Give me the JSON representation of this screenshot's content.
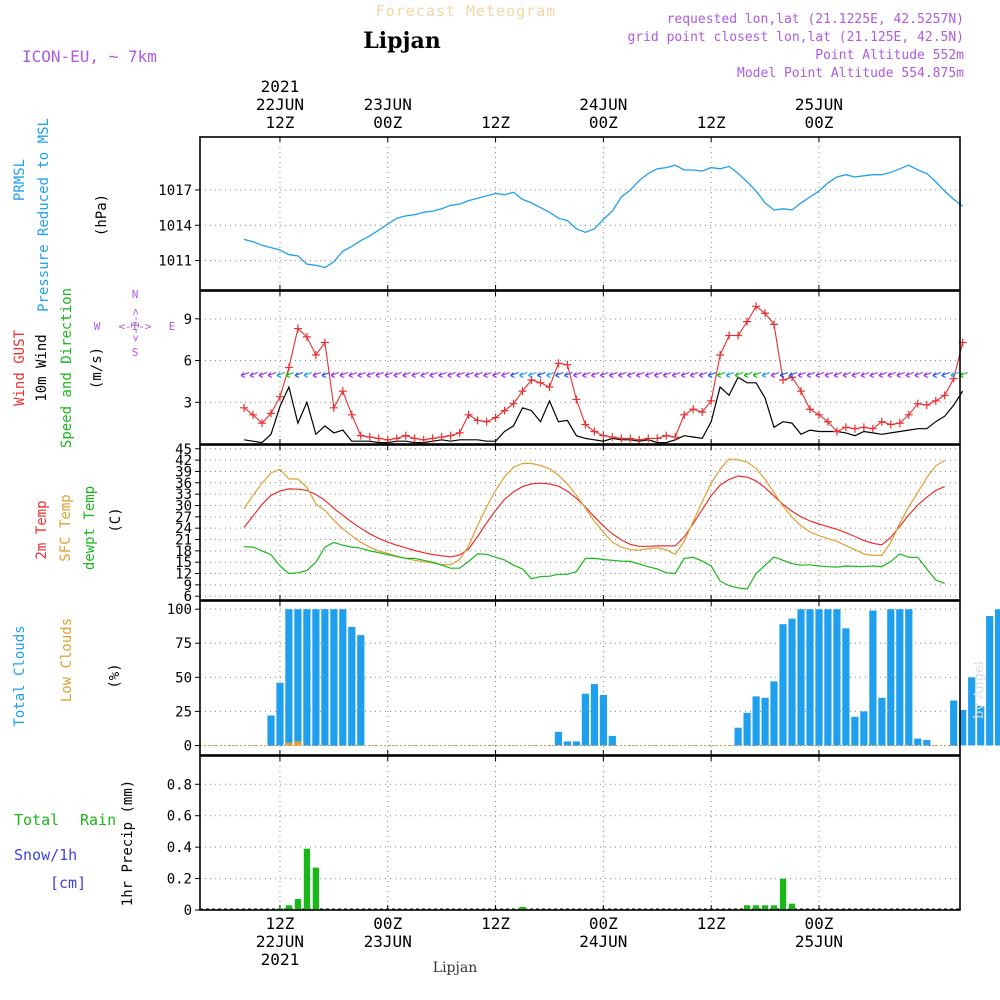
{
  "header": {
    "subtitle": "Forecast Meteogram",
    "location": "Lipjan",
    "model": "ICON-EU, ~ 7km",
    "requested": "requested lon,lat (21.1225E, 42.5257N)",
    "grid_point": "grid point closest lon,lat (21.125E, 42.5N)",
    "point_altitude": "Point Altitude 552m",
    "model_altitude": "Model Point Altitude 554.875m",
    "footer": "Lipjan",
    "watermark": "by Angel"
  },
  "time_axis": {
    "ticks": [
      {
        "hours": 12,
        "top": [
          "2021",
          "22JUN",
          "12Z"
        ],
        "bottom": [
          "12Z",
          "22JUN",
          "2021"
        ]
      },
      {
        "hours": 24,
        "top": [
          "23JUN",
          "00Z"
        ],
        "bottom": [
          "00Z",
          "23JUN"
        ]
      },
      {
        "hours": 36,
        "top": [
          "12Z"
        ],
        "bottom": [
          "12Z"
        ]
      },
      {
        "hours": 48,
        "top": [
          "24JUN",
          "00Z"
        ],
        "bottom": [
          "00Z",
          "24JUN"
        ]
      },
      {
        "hours": 60,
        "top": [
          "12Z"
        ],
        "bottom": [
          "12Z"
        ]
      },
      {
        "hours": 72,
        "top": [
          "25JUN",
          "00Z"
        ],
        "bottom": [
          "00Z",
          "25JUN"
        ]
      }
    ]
  },
  "panel_labels": {
    "pressure": [
      {
        "text": "PRMSL",
        "color": "#1ea0ee"
      },
      {
        "text": "Pressure Reduced to MSL",
        "color": "#1ea0ee"
      },
      {
        "text": "(hPa)",
        "color": "#000000"
      }
    ],
    "wind": [
      {
        "text": "Wind GUST",
        "color": "#e83030"
      },
      {
        "text": "10m Wind",
        "color": "#000000"
      },
      {
        "text": "Speed and Direction",
        "color": "#18b818"
      },
      {
        "text": "(m/s)",
        "color": "#000000"
      }
    ],
    "compass": {
      "n": "N",
      "s": "S",
      "w": "W",
      "e": "E",
      "ns_arrow": "<-I->",
      "we_arrow": "<-I->"
    },
    "temp": [
      {
        "text": "2m Temp",
        "color": "#e83030"
      },
      {
        "text": "SFC Temp",
        "color": "#e0a030"
      },
      {
        "text": "dewpt Temp",
        "color": "#18b818"
      },
      {
        "text": "(C)",
        "color": "#000000"
      }
    ],
    "clouds": [
      {
        "text": "Total Clouds",
        "color": "#1ea0ee"
      },
      {
        "text": "Low Clouds",
        "color": "#e0a030"
      },
      {
        "text": "(%)",
        "color": "#000000"
      }
    ],
    "precip": {
      "total": "Total",
      "rain": "Rain",
      "snow": "Snow/1h",
      "cm": "[cm]",
      "axis": "1hr Precip (mm)"
    }
  },
  "chart_data": [
    {
      "type": "line",
      "title": "PRMSL Pressure Reduced to MSL",
      "ylabel": "(hPa)",
      "ylim": [
        1008.5,
        1021.5
      ],
      "yticks": [
        1011,
        1014,
        1017
      ],
      "x_units": "hours since 22JUN 00Z",
      "x_step": 1,
      "x_start": 8,
      "series": [
        {
          "name": "PRMSL",
          "color": "#1ea0ee",
          "values": [
            1012.8,
            1012.6,
            1012.3,
            1012.1,
            1011.9,
            1011.5,
            1011.4,
            1010.7,
            1010.6,
            1010.4,
            1010.9,
            1011.8,
            1012.2,
            1012.7,
            1013.1,
            1013.6,
            1014.1,
            1014.6,
            1014.8,
            1014.9,
            1015.1,
            1015.2,
            1015.4,
            1015.7,
            1015.8,
            1016.1,
            1016.3,
            1016.5,
            1016.7,
            1016.6,
            1016.8,
            1016.2,
            1015.9,
            1015.5,
            1015.1,
            1014.6,
            1014.4,
            1013.7,
            1013.4,
            1013.7,
            1014.5,
            1015.2,
            1016.4,
            1017.0,
            1017.8,
            1018.4,
            1018.8,
            1018.9,
            1019.1,
            1018.7,
            1018.7,
            1018.6,
            1018.9,
            1018.8,
            1019.0,
            1018.4,
            1017.7,
            1016.9,
            1015.9,
            1015.3,
            1015.4,
            1015.3,
            1015.9,
            1016.4,
            1016.9,
            1017.6,
            1018.1,
            1018.3,
            1018.1,
            1018.2,
            1018.3,
            1018.3,
            1018.5,
            1018.8,
            1019.1,
            1018.7,
            1018.4,
            1017.7,
            1016.9,
            1016.2,
            1015.6
          ]
        }
      ]
    },
    {
      "type": "line",
      "title": "Wind GUST / 10m Wind Speed and Direction",
      "ylabel": "(m/s)",
      "ylim": [
        0,
        11
      ],
      "yticks": [
        3,
        6,
        9
      ],
      "x_units": "hours since 22JUN 00Z",
      "x_step": 1,
      "x_start": 8,
      "series": [
        {
          "name": "Wind GUST",
          "color": "#e83030",
          "marker": "+",
          "values": [
            2.6,
            2.1,
            1.5,
            2.2,
            3.4,
            5.5,
            8.3,
            7.7,
            6.4,
            7.3,
            2.6,
            3.8,
            2.1,
            0.6,
            0.5,
            0.4,
            0.3,
            0.4,
            0.6,
            0.4,
            0.3,
            0.4,
            0.5,
            0.6,
            0.8,
            2.1,
            1.7,
            1.6,
            1.9,
            2.4,
            2.9,
            3.8,
            4.6,
            4.4,
            4.1,
            5.8,
            5.7,
            3.2,
            1.4,
            0.9,
            0.6,
            0.5,
            0.4,
            0.4,
            0.3,
            0.4,
            0.4,
            0.6,
            0.5,
            2.1,
            2.5,
            2.3,
            3.1,
            6.4,
            7.8,
            7.8,
            8.8,
            9.9,
            9.4,
            8.6,
            4.6,
            4.8,
            3.8,
            2.5,
            2.1,
            1.6,
            0.9,
            1.2,
            1.1,
            1.2,
            1.1,
            1.6,
            1.4,
            1.5,
            2.1,
            2.9,
            2.8,
            3.1,
            3.5,
            4.7,
            7.3
          ]
        },
        {
          "name": "10m Wind",
          "color": "#000000",
          "values": [
            0.3,
            0.2,
            0.1,
            0.7,
            2.7,
            4.1,
            1.5,
            3.0,
            0.7,
            1.3,
            0.8,
            1.0,
            0.2,
            0.2,
            0.2,
            0.1,
            0.1,
            0.2,
            0.2,
            0.1,
            0.1,
            0.2,
            0.3,
            0.2,
            0.3,
            0.3,
            0.3,
            0.2,
            0.2,
            0.9,
            1.3,
            2.6,
            2.4,
            1.6,
            3.1,
            1.6,
            1.7,
            0.6,
            0.4,
            0.3,
            0.2,
            0.4,
            0.3,
            0.3,
            0.2,
            0.3,
            0.1,
            0.1,
            0.3,
            0.6,
            0.5,
            0.4,
            1.6,
            4.1,
            3.5,
            4.8,
            4.4,
            4.4,
            3.3,
            1.2,
            1.6,
            1.5,
            0.7,
            1.0,
            0.9,
            0.9,
            0.9,
            0.8,
            0.6,
            0.9,
            0.8,
            0.7,
            0.8,
            0.9,
            1.0,
            1.1,
            1.1,
            1.6,
            2.0,
            2.8,
            3.8
          ]
        },
        {
          "name": "Speed and Direction",
          "color": "#18b818",
          "kind": "arrows",
          "level": 5.0
        }
      ]
    },
    {
      "type": "line",
      "title": "2m Temp / SFC Temp / dewpt Temp",
      "ylabel": "(C)",
      "ylim": [
        5,
        46
      ],
      "yticks": [
        6,
        9,
        12,
        15,
        18,
        21,
        24,
        27,
        30,
        33,
        36,
        39,
        42,
        45
      ],
      "x_units": "hours since 22JUN 00Z",
      "x_step": 1,
      "x_start": 8,
      "series": [
        {
          "name": "2m Temp",
          "color": "#e83030",
          "values": [
            24.2,
            27.2,
            30.3,
            32.7,
            33.8,
            34.4,
            34.3,
            34.0,
            32.9,
            31.4,
            29.2,
            27.4,
            25.6,
            24.0,
            22.5,
            21.3,
            20.3,
            19.5,
            18.8,
            18.1,
            17.5,
            17.0,
            16.7,
            16.4,
            16.9,
            18.5,
            21.8,
            25.4,
            28.7,
            31.6,
            33.6,
            35.0,
            35.7,
            35.9,
            35.7,
            35.1,
            33.8,
            31.9,
            29.6,
            27.0,
            24.6,
            22.5,
            20.9,
            19.7,
            19.2,
            19.2,
            19.3,
            19.3,
            19.3,
            21.7,
            25.2,
            28.9,
            32.6,
            35.4,
            36.9,
            37.8,
            37.5,
            36.5,
            34.7,
            32.5,
            30.3,
            28.5,
            27.0,
            25.9,
            25.1,
            24.4,
            23.7,
            22.8,
            21.8,
            20.7,
            20.0,
            19.6,
            21.6,
            24.5,
            27.5,
            30.1,
            32.2,
            34.0,
            35.0
          ]
        },
        {
          "name": "SFC Temp",
          "color": "#e0a030",
          "values": [
            29.1,
            32.7,
            35.9,
            38.6,
            39.6,
            37.0,
            37.0,
            34.8,
            30.4,
            28.7,
            26.1,
            23.8,
            22.0,
            20.3,
            19.0,
            18.0,
            17.3,
            16.6,
            16.0,
            15.5,
            15.1,
            14.8,
            14.4,
            14.3,
            15.7,
            19.3,
            24.7,
            29.6,
            34.0,
            37.6,
            40.1,
            41.1,
            41.1,
            40.6,
            39.7,
            38.0,
            35.7,
            32.7,
            29.3,
            25.8,
            22.9,
            20.3,
            19.0,
            18.3,
            18.2,
            18.6,
            18.8,
            18.3,
            17.1,
            20.5,
            25.8,
            31.0,
            35.9,
            39.6,
            42.3,
            42.1,
            41.5,
            39.8,
            36.9,
            33.4,
            29.8,
            26.9,
            24.6,
            23.0,
            22.0,
            21.3,
            20.5,
            19.4,
            18.3,
            17.2,
            16.8,
            16.8,
            20.2,
            25.3,
            29.7,
            33.4,
            37.4,
            40.5,
            41.9
          ]
        },
        {
          "name": "dewpt Temp",
          "color": "#18b818",
          "values": [
            19.1,
            19.0,
            18.0,
            17.0,
            14.0,
            12.0,
            12.2,
            12.8,
            15.0,
            19.0,
            20.2,
            19.5,
            19.0,
            18.7,
            18.0,
            17.5,
            17.0,
            16.5,
            16.0,
            16.0,
            15.5,
            15.0,
            14.2,
            13.4,
            13.4,
            15.2,
            17.2,
            17.1,
            16.3,
            15.6,
            14.2,
            13.2,
            10.6,
            11.2,
            11.3,
            11.8,
            11.8,
            12.5,
            16.0,
            16.0,
            15.7,
            15.5,
            15.3,
            15.2,
            14.5,
            13.8,
            13.2,
            12.2,
            12.0,
            16.0,
            16.3,
            15.3,
            14.0,
            10.0,
            8.8,
            8.2,
            7.9,
            12.0,
            14.2,
            16.4,
            15.5,
            14.6,
            14.2,
            14.3,
            14.0,
            13.8,
            13.7,
            14.0,
            13.9,
            13.8,
            14.0,
            13.8,
            15.2,
            17.2,
            16.3,
            16.3,
            13.2,
            10.3,
            9.4
          ]
        }
      ]
    },
    {
      "type": "bar",
      "title": "Total Clouds / Low Clouds",
      "ylabel": "(%)",
      "ylim": [
        -7,
        106
      ],
      "yticks": [
        0,
        25,
        50,
        75,
        100
      ],
      "x_units": "hours since 22JUN 00Z",
      "x_step": 1,
      "x_start": 11,
      "series": [
        {
          "name": "Total Clouds",
          "color": "#1ea0ee",
          "values": [
            22,
            46,
            100,
            100,
            100,
            100,
            100,
            100,
            100,
            87,
            81,
            0,
            0,
            0,
            0,
            0,
            0,
            0,
            0,
            0,
            0,
            0,
            0,
            0,
            0,
            0,
            0,
            0,
            0,
            0,
            0,
            0,
            10,
            3,
            3,
            38,
            45,
            37,
            7,
            0,
            0,
            0,
            0,
            0,
            0,
            0,
            0,
            0,
            0,
            0,
            0,
            0,
            13,
            24,
            36,
            35,
            47,
            89,
            93,
            100,
            100,
            100,
            100,
            100,
            86,
            21,
            25,
            99,
            35,
            100,
            100,
            100,
            5,
            4,
            0,
            0,
            33,
            26,
            50,
            29,
            95,
            100
          ]
        },
        {
          "name": "Low Clouds",
          "color": "#e0a030",
          "values": [
            0,
            0,
            2,
            3,
            0,
            0,
            0,
            0,
            0,
            0,
            0,
            0,
            0,
            0,
            0,
            0,
            0,
            0,
            0,
            0,
            0,
            0,
            0,
            0,
            0,
            0,
            0,
            0,
            0,
            0,
            0,
            0,
            0,
            0,
            0,
            0,
            0,
            0,
            0,
            0,
            0,
            0,
            0,
            0,
            0,
            0,
            0,
            0,
            0,
            0,
            0,
            0,
            0,
            0,
            0,
            0,
            0,
            0,
            0,
            0,
            0,
            0,
            0,
            0,
            0,
            0,
            0,
            0,
            0,
            0,
            0,
            0,
            0,
            0,
            0,
            0,
            0,
            0,
            0,
            0,
            0,
            0
          ]
        }
      ]
    },
    {
      "type": "bar",
      "title": "Total Rain / Snow",
      "ylabel": "1hr Precip (mm)",
      "ylim": [
        0,
        0.98
      ],
      "yticks": [
        0,
        0.2,
        0.4,
        0.6,
        0.8
      ],
      "x_units": "hours since 22JUN 00Z",
      "series": [
        {
          "name": "Total Rain",
          "color": "#18b818",
          "x": [
            12,
            13,
            14,
            15,
            16,
            39,
            64,
            65,
            66,
            67,
            68,
            69
          ],
          "values": [
            0.01,
            0.03,
            0.07,
            0.39,
            0.27,
            0.02,
            0.03,
            0.03,
            0.03,
            0.03,
            0.2,
            0.04
          ]
        }
      ]
    }
  ]
}
